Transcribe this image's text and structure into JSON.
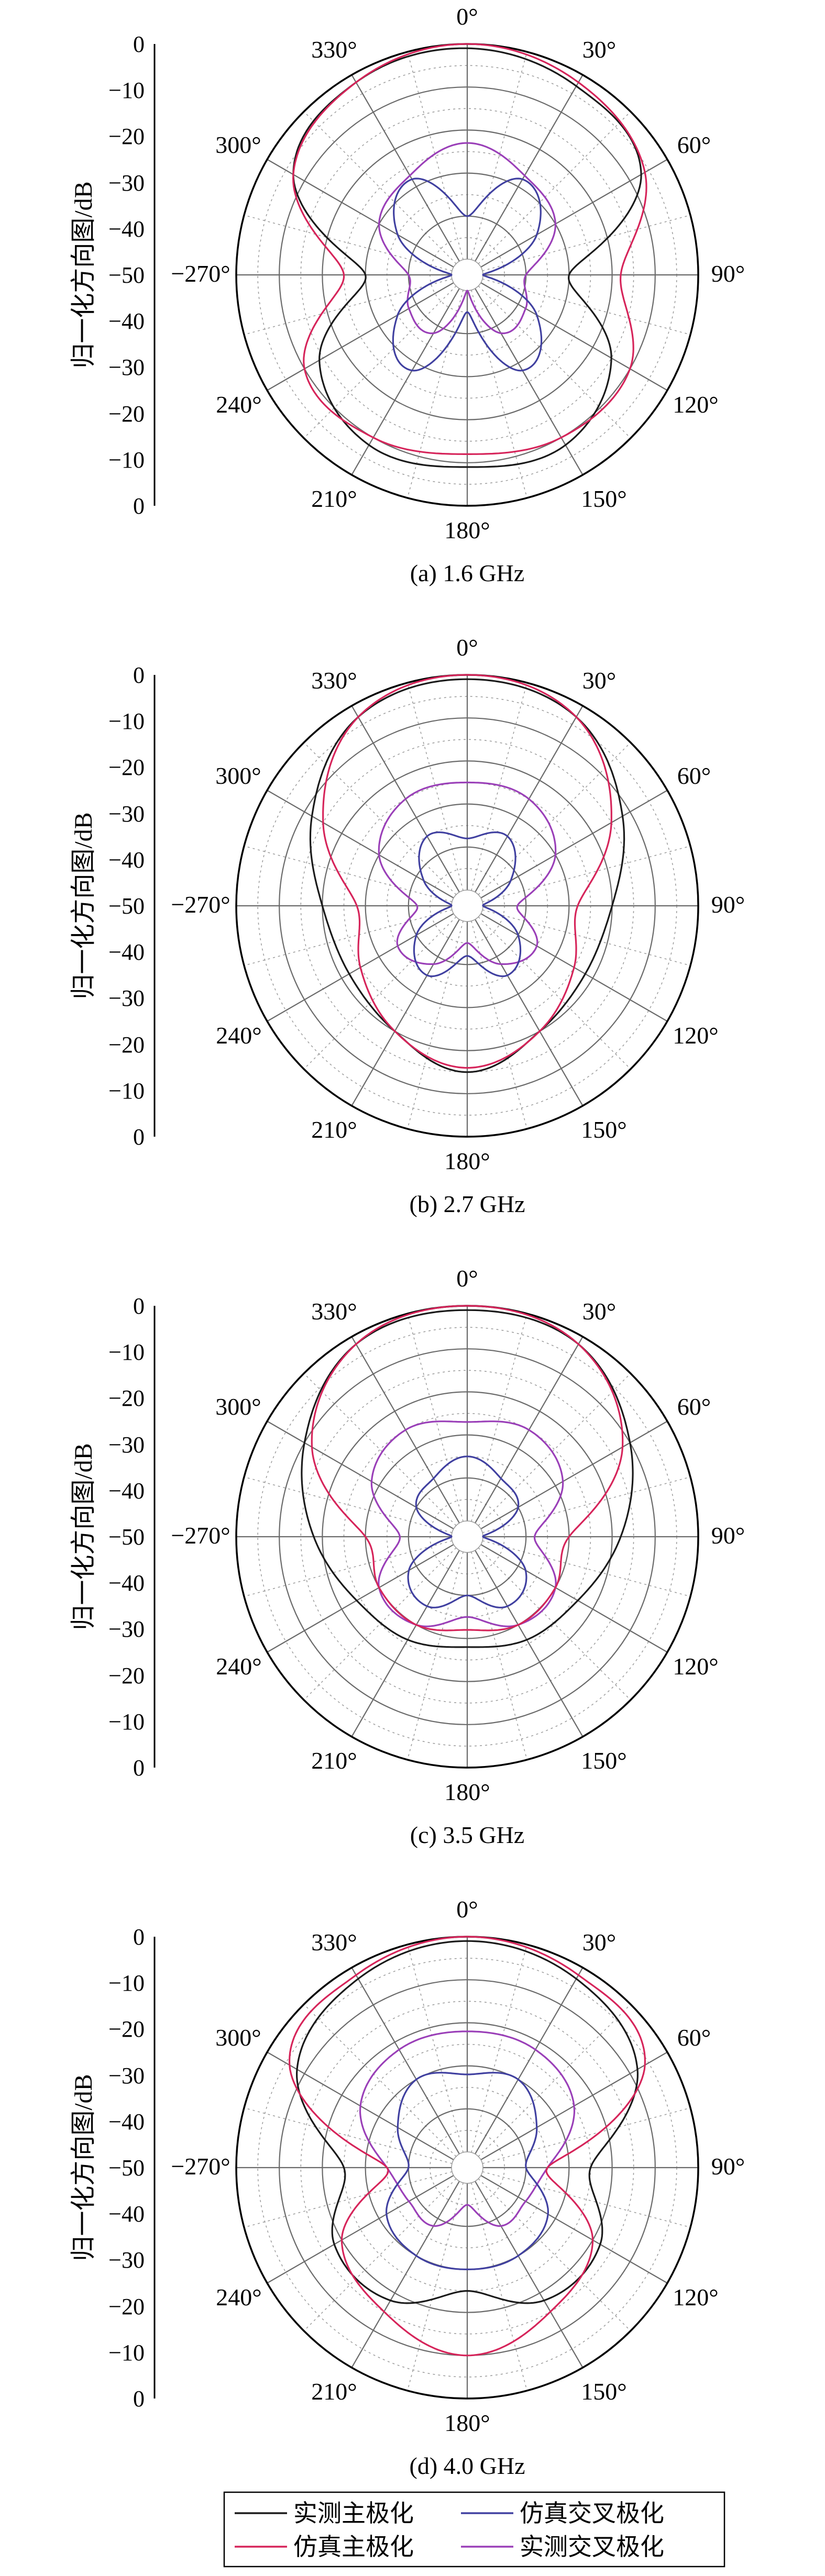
{
  "legend": {
    "colors": {
      "measured_co": "#1a1a1a",
      "sim_co": "#d6245a",
      "sim_cross": "#4040a0",
      "measured_cross": "#9a3fb8"
    },
    "items": [
      {
        "key": "measured_co",
        "label": "实测主极化"
      },
      {
        "key": "sim_cross",
        "label": "仿真交叉极化"
      },
      {
        "key": "sim_co",
        "label": "仿真主极化"
      },
      {
        "key": "measured_cross",
        "label": "实测交叉极化"
      }
    ]
  },
  "chart_data": [
    {
      "type": "polar",
      "caption": "(a) 1.6 GHz",
      "ylabel": "归一化方向图/dB",
      "r_ticks": [
        "0",
        "−10",
        "−20",
        "−30",
        "−40",
        "−50",
        "−40",
        "−30",
        "−20",
        "−10",
        "0"
      ],
      "angle_labels": [
        "0°",
        "30°",
        "60°",
        "90°",
        "120°",
        "150°",
        "180°",
        "210°",
        "240°",
        "−270°",
        "300°",
        "330°"
      ],
      "rlim": [
        -50,
        0
      ],
      "grid": true,
      "series": [
        {
          "key": "measured_co",
          "angles": [
            0,
            30,
            60,
            90,
            120,
            150,
            180,
            210,
            240,
            270,
            300,
            330
          ],
          "values": [
            -1,
            -3,
            -7,
            -30,
            -15,
            -8,
            -9,
            -8,
            -14,
            -30,
            -7,
            -2
          ]
        },
        {
          "key": "sim_co",
          "angles": [
            0,
            30,
            60,
            90,
            120,
            150,
            180,
            210,
            240,
            270,
            300,
            330
          ],
          "values": [
            0,
            -2,
            -6,
            -18,
            -10,
            -10,
            -12,
            -10,
            -10,
            -25,
            -7,
            -2
          ]
        },
        {
          "key": "sim_cross",
          "angles": [
            0,
            30,
            60,
            90,
            120,
            150,
            180,
            210,
            240,
            270,
            300,
            330
          ],
          "values": [
            -40,
            -28,
            -35,
            -50,
            -35,
            -28,
            -45,
            -28,
            -35,
            -50,
            -35,
            -28
          ]
        },
        {
          "key": "measured_cross",
          "angles": [
            0,
            30,
            60,
            90,
            120,
            150,
            180,
            210,
            240,
            270,
            300,
            330
          ],
          "values": [
            -23,
            -27,
            -30,
            -40,
            -38,
            -38,
            -50,
            -38,
            -38,
            -40,
            -30,
            -27
          ]
        }
      ]
    },
    {
      "type": "polar",
      "caption": "(b) 2.7 GHz",
      "ylabel": "归一化方向图/dB",
      "r_ticks": [
        "0",
        "−10",
        "−20",
        "−30",
        "−40",
        "−50",
        "−40",
        "−30",
        "−20",
        "−10",
        "0"
      ],
      "angle_labels": [
        "0°",
        "30°",
        "60°",
        "90°",
        "120°",
        "150°",
        "180°",
        "210°",
        "240°",
        "−270°",
        "300°",
        "330°"
      ],
      "rlim": [
        -50,
        0
      ],
      "grid": true,
      "series": [
        {
          "key": "measured_co",
          "angles": [
            0,
            30,
            60,
            90,
            120,
            150,
            180,
            210,
            240,
            270,
            300,
            330
          ],
          "values": [
            -1,
            -3,
            -12,
            -20,
            -22,
            -20,
            -15,
            -20,
            -22,
            -20,
            -12,
            -3
          ]
        },
        {
          "key": "sim_co",
          "angles": [
            0,
            30,
            60,
            90,
            120,
            150,
            180,
            210,
            240,
            270,
            300,
            330
          ],
          "values": [
            0,
            -3,
            -15,
            -28,
            -25,
            -20,
            -16,
            -20,
            -25,
            -28,
            -15,
            -3
          ]
        },
        {
          "key": "sim_cross",
          "angles": [
            0,
            30,
            60,
            90,
            120,
            150,
            180,
            210,
            240,
            270,
            300,
            330
          ],
          "values": [
            -38,
            -35,
            -42,
            -50,
            -40,
            -35,
            -42,
            -35,
            -40,
            -50,
            -42,
            -35
          ]
        },
        {
          "key": "measured_cross",
          "angles": [
            0,
            30,
            60,
            90,
            120,
            150,
            180,
            210,
            240,
            270,
            300,
            330
          ],
          "values": [
            -25,
            -25,
            -30,
            -42,
            -35,
            -38,
            -45,
            -38,
            -35,
            -42,
            -30,
            -25
          ]
        }
      ]
    },
    {
      "type": "polar",
      "caption": "(c) 3.5 GHz",
      "ylabel": "归一化方向图/dB",
      "r_ticks": [
        "0",
        "−10",
        "−20",
        "−30",
        "−40",
        "−50",
        "−40",
        "−30",
        "−20",
        "−10",
        "0"
      ],
      "angle_labels": [
        "0°",
        "30°",
        "60°",
        "90°",
        "120°",
        "150°",
        "180°",
        "210°",
        "240°",
        "−270°",
        "300°",
        "330°"
      ],
      "rlim": [
        -50,
        0
      ],
      "grid": true,
      "series": [
        {
          "key": "measured_co",
          "angles": [
            0,
            30,
            60,
            90,
            120,
            150,
            180,
            210,
            240,
            270,
            300,
            330
          ],
          "values": [
            -1,
            -2,
            -10,
            -18,
            -24,
            -26,
            -28,
            -26,
            -24,
            -18,
            -10,
            -2
          ]
        },
        {
          "key": "sim_co",
          "angles": [
            0,
            30,
            60,
            90,
            120,
            150,
            180,
            210,
            240,
            270,
            300,
            330
          ],
          "values": [
            0,
            -2,
            -12,
            -30,
            -30,
            -30,
            -32,
            -30,
            -30,
            -30,
            -12,
            -2
          ]
        },
        {
          "key": "sim_cross",
          "angles": [
            0,
            30,
            60,
            90,
            120,
            150,
            180,
            210,
            240,
            270,
            300,
            330
          ],
          "values": [
            -35,
            -38,
            -40,
            -50,
            -38,
            -35,
            -40,
            -35,
            -38,
            -50,
            -40,
            -38
          ]
        },
        {
          "key": "measured_cross",
          "angles": [
            0,
            30,
            60,
            90,
            120,
            150,
            180,
            210,
            240,
            270,
            300,
            330
          ],
          "values": [
            -27,
            -25,
            -28,
            -38,
            -30,
            -30,
            -35,
            -30,
            -30,
            -38,
            -28,
            -25
          ]
        }
      ]
    },
    {
      "type": "polar",
      "caption": "(d) 4.0 GHz",
      "ylabel": "归一化方向图/dB",
      "r_ticks": [
        "0",
        "−10",
        "−20",
        "−30",
        "−40",
        "−50",
        "−40",
        "−30",
        "−20",
        "−10",
        "0"
      ],
      "angle_labels": [
        "0°",
        "30°",
        "60°",
        "90°",
        "120°",
        "150°",
        "180°",
        "210°",
        "240°",
        "−270°",
        "300°",
        "330°"
      ],
      "rlim": [
        -50,
        0
      ],
      "grid": true,
      "series": [
        {
          "key": "measured_co",
          "angles": [
            0,
            30,
            60,
            90,
            120,
            150,
            180,
            210,
            240,
            270,
            300,
            330
          ],
          "values": [
            -1,
            -3,
            -8,
            -25,
            -18,
            -18,
            -25,
            -18,
            -18,
            -25,
            -8,
            -3
          ]
        },
        {
          "key": "sim_co",
          "angles": [
            0,
            30,
            60,
            90,
            120,
            150,
            180,
            210,
            240,
            270,
            300,
            330
          ],
          "values": [
            0,
            -2,
            -6,
            -35,
            -20,
            -15,
            -10,
            -15,
            -20,
            -35,
            -6,
            -2
          ]
        },
        {
          "key": "sim_cross",
          "angles": [
            0,
            30,
            60,
            90,
            120,
            150,
            180,
            210,
            240,
            270,
            300,
            330
          ],
          "values": [
            -32,
            -30,
            -35,
            -40,
            -32,
            -30,
            -30,
            -30,
            -32,
            -40,
            -35,
            -30
          ]
        },
        {
          "key": "measured_cross",
          "angles": [
            0,
            30,
            60,
            90,
            120,
            150,
            180,
            210,
            240,
            270,
            300,
            330
          ],
          "values": [
            -22,
            -22,
            -25,
            -35,
            -38,
            -38,
            -45,
            -38,
            -38,
            -35,
            -25,
            -22
          ]
        }
      ]
    }
  ]
}
